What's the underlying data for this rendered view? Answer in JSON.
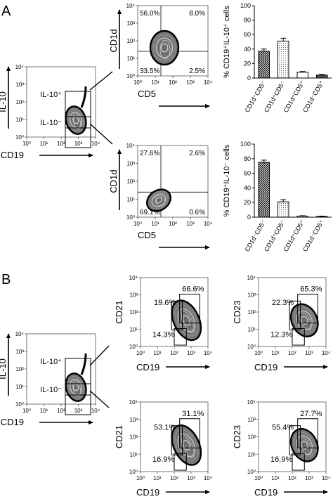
{
  "panel_labels": [
    "A",
    "B"
  ],
  "tick_labels": [
    "10⁰",
    "10¹",
    "10²",
    "10³",
    "10⁴"
  ],
  "gates": {
    "il10_pos": "IL-10⁺",
    "il10_neg": "IL-10⁻"
  },
  "chart_data": [
    {
      "type": "contour",
      "panel": "A",
      "id": "A-gate",
      "xlabel": "CD19",
      "ylabel": "IL-10",
      "gates": [
        "IL-10⁺",
        "IL-10⁻"
      ]
    },
    {
      "type": "contour",
      "panel": "A",
      "id": "A-il10pos-cd5-cd1d",
      "xlabel": "CD5",
      "ylabel": "CD1d",
      "quadrants": {
        "top_left": "56.0%",
        "top_right": "8.0%",
        "bottom_left": "33.5%",
        "bottom_right": "2.5%"
      }
    },
    {
      "type": "contour",
      "panel": "A",
      "id": "A-il10neg-cd5-cd1d",
      "xlabel": "CD5",
      "ylabel": "CD1d",
      "quadrants": {
        "top_left": "27.6%",
        "top_right": "2.6%",
        "bottom_left": "69.1%",
        "bottom_right": "0.6%"
      }
    },
    {
      "type": "bar",
      "panel": "A",
      "id": "A-bar-il10pos",
      "ylabel": "% CD19⁺IL-10⁺ cells",
      "ylim": [
        0,
        100
      ],
      "yticks": [
        "0",
        "20",
        "40",
        "60",
        "80",
        "100"
      ],
      "categories": [
        "CD1d⁻CD5⁻",
        "CD1d⁺CD5⁻",
        "CD1d⁺CD5⁺",
        "CD1d⁻CD5⁺"
      ],
      "values": [
        37,
        51,
        8,
        4
      ],
      "errors": [
        3,
        4,
        1,
        1
      ]
    },
    {
      "type": "bar",
      "panel": "A",
      "id": "A-bar-il10neg",
      "ylabel": "% CD19⁺IL-10⁻ cells",
      "ylim": [
        0,
        100
      ],
      "yticks": [
        "0",
        "20",
        "40",
        "60",
        "80",
        "100"
      ],
      "categories": [
        "CD1d⁻CD5⁻",
        "CD1d⁺CD5⁻",
        "CD1d⁺CD5⁺",
        "CD1d⁻CD5⁺"
      ],
      "values": [
        75,
        21,
        1.5,
        1
      ],
      "errors": [
        3,
        3,
        0.5,
        0.5
      ]
    },
    {
      "type": "contour",
      "panel": "B",
      "id": "B-gate",
      "xlabel": "CD19",
      "ylabel": "IL-10",
      "gates": [
        "IL-10⁺",
        "IL-10⁻"
      ]
    },
    {
      "type": "contour",
      "panel": "B",
      "id": "B-il10pos-cd19-cd21",
      "xlabel": "CD19",
      "ylabel": "CD21",
      "gate_values": [
        "66.6%",
        "19.6%",
        "14.3%"
      ]
    },
    {
      "type": "contour",
      "panel": "B",
      "id": "B-il10pos-cd19-cd23",
      "xlabel": "CD19",
      "ylabel": "CD23",
      "gate_values": [
        "65.3%",
        "22.3%",
        "12.3%"
      ]
    },
    {
      "type": "contour",
      "panel": "B",
      "id": "B-il10neg-cd19-cd21",
      "xlabel": "CD19",
      "ylabel": "CD21",
      "gate_values": [
        "31.1%",
        "53.1%",
        "16.9%"
      ]
    },
    {
      "type": "contour",
      "panel": "B",
      "id": "B-il10neg-cd19-cd23",
      "xlabel": "CD19",
      "ylabel": "CD23",
      "gate_values": [
        "27.7%",
        "55.4%",
        "16.9%"
      ]
    }
  ]
}
